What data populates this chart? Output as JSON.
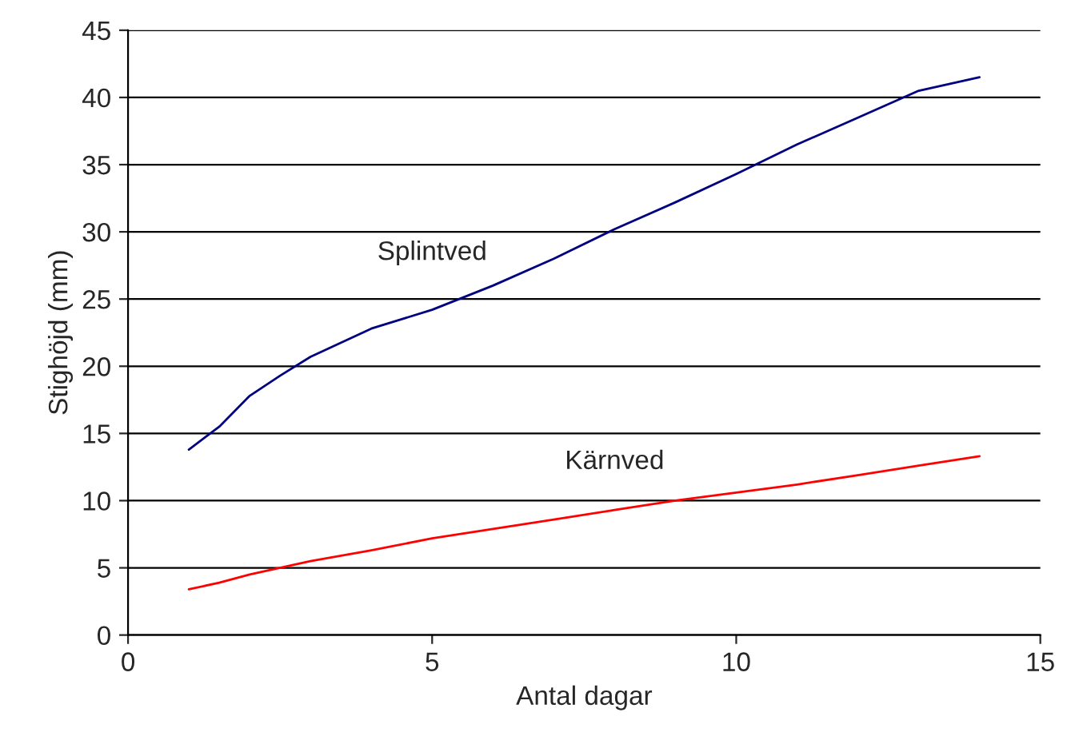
{
  "chart_data": {
    "type": "line",
    "xlabel": "Antal dagar",
    "ylabel": "Stighöjd (mm)",
    "xlim": [
      0,
      15
    ],
    "xticks": [
      0,
      5,
      10,
      15
    ],
    "ylim": [
      0,
      45
    ],
    "yticks": [
      0,
      5,
      10,
      15,
      20,
      25,
      30,
      35,
      40,
      45
    ],
    "grid": "y",
    "legend": false,
    "series": [
      {
        "name": "Splintved",
        "color": "#000080",
        "x": [
          1,
          1.5,
          2,
          2.5,
          3,
          4,
          5,
          6,
          7,
          8,
          9,
          10,
          11,
          12,
          13,
          14
        ],
        "values": [
          13.8,
          15.5,
          17.8,
          19.3,
          20.7,
          22.8,
          24.2,
          26,
          28,
          30.2,
          32.2,
          34.3,
          36.5,
          38.5,
          40.5,
          41.5
        ]
      },
      {
        "name": "Kärnved",
        "color": "#ff0000",
        "x": [
          1,
          1.5,
          2,
          3,
          4,
          5,
          6,
          7,
          8,
          9,
          10,
          11,
          12,
          13,
          14
        ],
        "values": [
          3.4,
          3.9,
          4.5,
          5.5,
          6.3,
          7.2,
          7.9,
          8.6,
          9.3,
          10,
          10.6,
          11.2,
          11.9,
          12.6,
          13.3
        ]
      }
    ]
  }
}
